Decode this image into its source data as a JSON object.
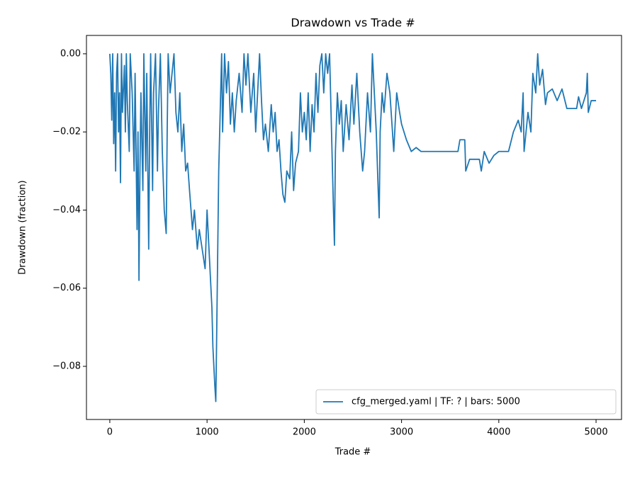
{
  "chart_data": {
    "type": "line",
    "title": "Drawdown vs Trade #",
    "xlabel": "Trade #",
    "ylabel": "Drawdown (fraction)",
    "x": [
      0,
      10,
      20,
      30,
      40,
      50,
      60,
      70,
      80,
      90,
      100,
      110,
      120,
      130,
      150,
      160,
      170,
      180,
      200,
      210,
      230,
      250,
      260,
      280,
      290,
      300,
      310,
      320,
      340,
      350,
      370,
      380,
      400,
      410,
      420,
      440,
      450,
      470,
      490,
      500,
      520,
      540,
      560,
      580,
      590,
      600,
      620,
      640,
      660,
      680,
      700,
      720,
      740,
      760,
      780,
      800,
      820,
      850,
      870,
      900,
      920,
      950,
      980,
      1000,
      1020,
      1050,
      1060,
      1080,
      1090,
      1100,
      1110,
      1120,
      1140,
      1150,
      1160,
      1180,
      1200,
      1220,
      1240,
      1260,
      1280,
      1300,
      1330,
      1360,
      1380,
      1400,
      1420,
      1450,
      1480,
      1500,
      1520,
      1540,
      1560,
      1580,
      1600,
      1630,
      1660,
      1680,
      1700,
      1720,
      1740,
      1760,
      1780,
      1800,
      1820,
      1850,
      1870,
      1890,
      1910,
      1940,
      1960,
      1980,
      2000,
      2020,
      2040,
      2060,
      2080,
      2100,
      2120,
      2140,
      2160,
      2180,
      2200,
      2220,
      2240,
      2260,
      2280,
      2300,
      2310,
      2320,
      2340,
      2360,
      2380,
      2400,
      2430,
      2460,
      2490,
      2510,
      2540,
      2570,
      2600,
      2620,
      2650,
      2680,
      2700,
      2720,
      2740,
      2760,
      2770,
      2780,
      2800,
      2820,
      2850,
      2880,
      2920,
      2950,
      2980,
      3000,
      3050,
      3100,
      3150,
      3200,
      3580,
      3600,
      3650,
      3660,
      3700,
      3800,
      3820,
      3850,
      3900,
      3950,
      4000,
      4100,
      4150,
      4200,
      4230,
      4250,
      4260,
      4300,
      4330,
      4350,
      4380,
      4400,
      4420,
      4450,
      4480,
      4500,
      4550,
      4600,
      4650,
      4700,
      4800,
      4820,
      4850,
      4900,
      4910,
      4920,
      4950,
      5000
    ],
    "series": [
      {
        "name": "cfg_merged.yaml | TF: ? | bars: 5000",
        "color": "#1f77b4",
        "values": [
          0,
          -0.005,
          -0.017,
          0,
          -0.023,
          -0.01,
          -0.03,
          -0.005,
          0,
          -0.02,
          -0.01,
          -0.033,
          0,
          -0.015,
          -0.003,
          -0.02,
          0,
          -0.012,
          -0.025,
          0,
          -0.01,
          -0.03,
          -0.005,
          -0.045,
          -0.02,
          -0.058,
          -0.03,
          -0.01,
          -0.035,
          0,
          -0.03,
          -0.005,
          -0.05,
          -0.02,
          0,
          -0.035,
          -0.01,
          0,
          -0.03,
          -0.015,
          0,
          -0.025,
          -0.04,
          -0.046,
          -0.02,
          0,
          -0.01,
          -0.005,
          0,
          -0.015,
          -0.02,
          -0.01,
          -0.025,
          -0.018,
          -0.03,
          -0.028,
          -0.035,
          -0.045,
          -0.04,
          -0.05,
          -0.045,
          -0.05,
          -0.055,
          -0.04,
          -0.05,
          -0.065,
          -0.075,
          -0.085,
          -0.089,
          -0.07,
          -0.05,
          -0.03,
          -0.01,
          0,
          -0.02,
          0,
          -0.01,
          -0.002,
          -0.018,
          -0.01,
          -0.02,
          -0.012,
          -0.005,
          -0.015,
          0,
          -0.008,
          0,
          -0.015,
          -0.005,
          -0.02,
          -0.01,
          0,
          -0.012,
          -0.022,
          -0.018,
          -0.025,
          -0.013,
          -0.02,
          -0.015,
          -0.025,
          -0.022,
          -0.03,
          -0.036,
          -0.038,
          -0.03,
          -0.032,
          -0.02,
          -0.035,
          -0.028,
          -0.025,
          -0.01,
          -0.02,
          -0.015,
          -0.022,
          -0.01,
          -0.025,
          -0.013,
          -0.02,
          -0.005,
          -0.015,
          -0.003,
          0,
          -0.01,
          0,
          -0.005,
          0,
          -0.02,
          -0.04,
          -0.049,
          -0.025,
          -0.01,
          -0.018,
          -0.012,
          -0.025,
          -0.013,
          -0.022,
          -0.008,
          -0.018,
          -0.005,
          -0.02,
          -0.03,
          -0.025,
          -0.01,
          -0.02,
          0,
          -0.01,
          -0.02,
          -0.035,
          -0.042,
          -0.02,
          -0.01,
          -0.015,
          -0.005,
          -0.01,
          -0.025,
          -0.01,
          -0.015,
          -0.018,
          -0.022,
          -0.025,
          -0.024,
          -0.025,
          -0.025,
          -0.022,
          -0.022,
          -0.03,
          -0.027,
          -0.027,
          -0.03,
          -0.025,
          -0.028,
          -0.026,
          -0.025,
          -0.025,
          -0.02,
          -0.017,
          -0.02,
          -0.01,
          -0.025,
          -0.015,
          -0.02,
          -0.005,
          -0.01,
          0,
          -0.008,
          -0.004,
          -0.013,
          -0.01,
          -0.009,
          -0.012,
          -0.009,
          -0.014,
          -0.014,
          -0.011,
          -0.014,
          -0.01,
          -0.005,
          -0.015,
          -0.012,
          -0.012
        ]
      }
    ],
    "xlim": [
      -240,
      5262
    ],
    "xticks": [
      0,
      1000,
      2000,
      3000,
      4000,
      5000
    ],
    "ylim": [
      -0.0936,
      0.0047
    ],
    "yticks": [
      {
        "value": -0.08,
        "label": "−0.08"
      },
      {
        "value": -0.06,
        "label": "−0.06"
      },
      {
        "value": -0.04,
        "label": "−0.04"
      },
      {
        "value": -0.02,
        "label": "−0.02"
      },
      {
        "value": 0,
        "label": "0.00"
      }
    ],
    "legend": "lower right",
    "grid": false
  }
}
